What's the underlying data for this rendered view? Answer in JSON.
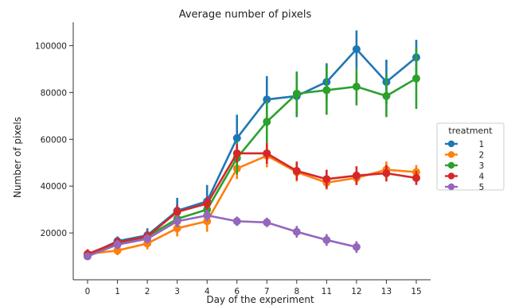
{
  "chart_data": {
    "type": "line",
    "title": "Average number of pixels",
    "xlabel": "Day of the experiment",
    "ylabel": "Number of pixels",
    "categories": [
      "0",
      "1",
      "2",
      "3",
      "4",
      "6",
      "7",
      "8",
      "11",
      "12",
      "13",
      "15"
    ],
    "ylim": [
      0,
      110000
    ],
    "yticks": [
      20000,
      40000,
      60000,
      80000,
      100000
    ],
    "grid": false,
    "legend": {
      "title": "treatment",
      "placement": "right"
    },
    "series": [
      {
        "name": "1",
        "color": "#1f77b4",
        "values": [
          10500,
          16500,
          19000,
          29500,
          33500,
          60500,
          77000,
          78500,
          84500,
          98500,
          84500,
          95000
        ],
        "err": [
          2000,
          2000,
          3000,
          5500,
          7000,
          10000,
          10000,
          9000,
          8000,
          8000,
          9500,
          7500
        ]
      },
      {
        "name": "2",
        "color": "#ff7f0e",
        "values": [
          11000,
          12500,
          15500,
          22000,
          25000,
          47500,
          53000,
          46000,
          41500,
          43500,
          47000,
          46000
        ],
        "err": [
          2000,
          2000,
          2500,
          3500,
          4500,
          4500,
          5000,
          4000,
          3000,
          3000,
          3500,
          3000
        ]
      },
      {
        "name": "3",
        "color": "#2ca02c",
        "values": [
          10500,
          15500,
          18500,
          26000,
          30000,
          52000,
          67500,
          79500,
          81000,
          82500,
          78500,
          86000
        ],
        "err": [
          1500,
          2000,
          2500,
          3500,
          4000,
          7000,
          9000,
          9500,
          10500,
          8000,
          9000,
          13000
        ]
      },
      {
        "name": "4",
        "color": "#d62728",
        "values": [
          11000,
          16000,
          18500,
          29000,
          32500,
          54000,
          54000,
          46500,
          43000,
          44500,
          45500,
          43500
        ],
        "err": [
          2000,
          2000,
          2500,
          3000,
          3000,
          4000,
          4500,
          4000,
          4000,
          4000,
          3500,
          3000
        ]
      },
      {
        "name": "5",
        "color": "#9467bd",
        "values": [
          10000,
          15000,
          17500,
          25000,
          27500,
          25000,
          24500,
          20500,
          17000,
          14000,
          null,
          null
        ],
        "err": [
          1500,
          2000,
          2000,
          2500,
          2500,
          2000,
          2000,
          2500,
          2500,
          2500,
          null,
          null
        ]
      }
    ]
  }
}
